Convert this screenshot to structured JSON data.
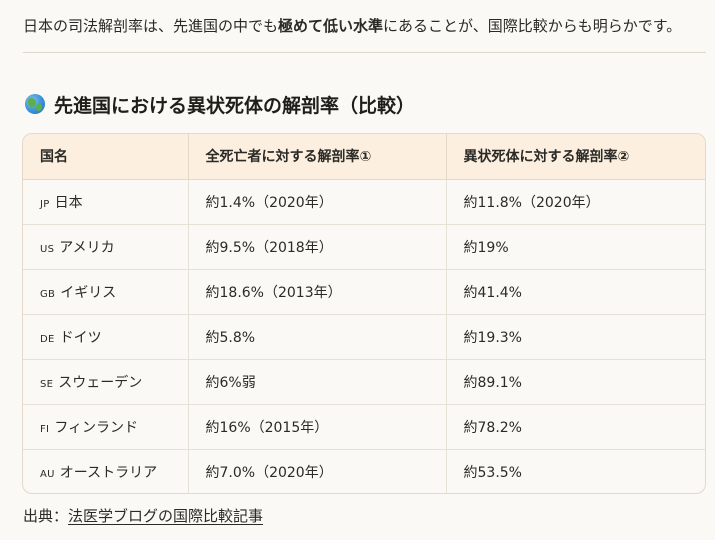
{
  "intro": {
    "before": "日本の司法解剖率は、先進国の中でも",
    "emphasis": "極めて低い水準",
    "after": "にあることが、国際比較からも明らかです。"
  },
  "heading": {
    "icon": "globe-icon",
    "text": "先進国における異状死体の解剖率（比較）"
  },
  "table": {
    "headers": [
      "国名",
      "全死亡者に対する解剖率①",
      "異状死体に対する解剖率②"
    ],
    "rows": [
      {
        "code": "JP",
        "country": "日本",
        "all_deaths": "約1.4%（2020年）",
        "unnatural": "約11.8%（2020年）"
      },
      {
        "code": "US",
        "country": "アメリカ",
        "all_deaths": "約9.5%（2018年）",
        "unnatural": "約19%"
      },
      {
        "code": "GB",
        "country": "イギリス",
        "all_deaths": "約18.6%（2013年）",
        "unnatural": "約41.4%"
      },
      {
        "code": "DE",
        "country": "ドイツ",
        "all_deaths": "約5.8%",
        "unnatural": "約19.3%"
      },
      {
        "code": "SE",
        "country": "スウェーデン",
        "all_deaths": "約6%弱",
        "unnatural": "約89.1%"
      },
      {
        "code": "FI",
        "country": "フィンランド",
        "all_deaths": "約16%（2015年）",
        "unnatural": "約78.2%"
      },
      {
        "code": "AU",
        "country": "オーストラリア",
        "all_deaths": "約7.0%（2020年）",
        "unnatural": "約53.5%"
      }
    ]
  },
  "source": {
    "label": "出典：",
    "link_text": "法医学ブログの国際比較記事"
  },
  "colors": {
    "header_bg": "#fcefdf",
    "border": "#e3d9c6",
    "page_bg": "#faf9f5"
  }
}
